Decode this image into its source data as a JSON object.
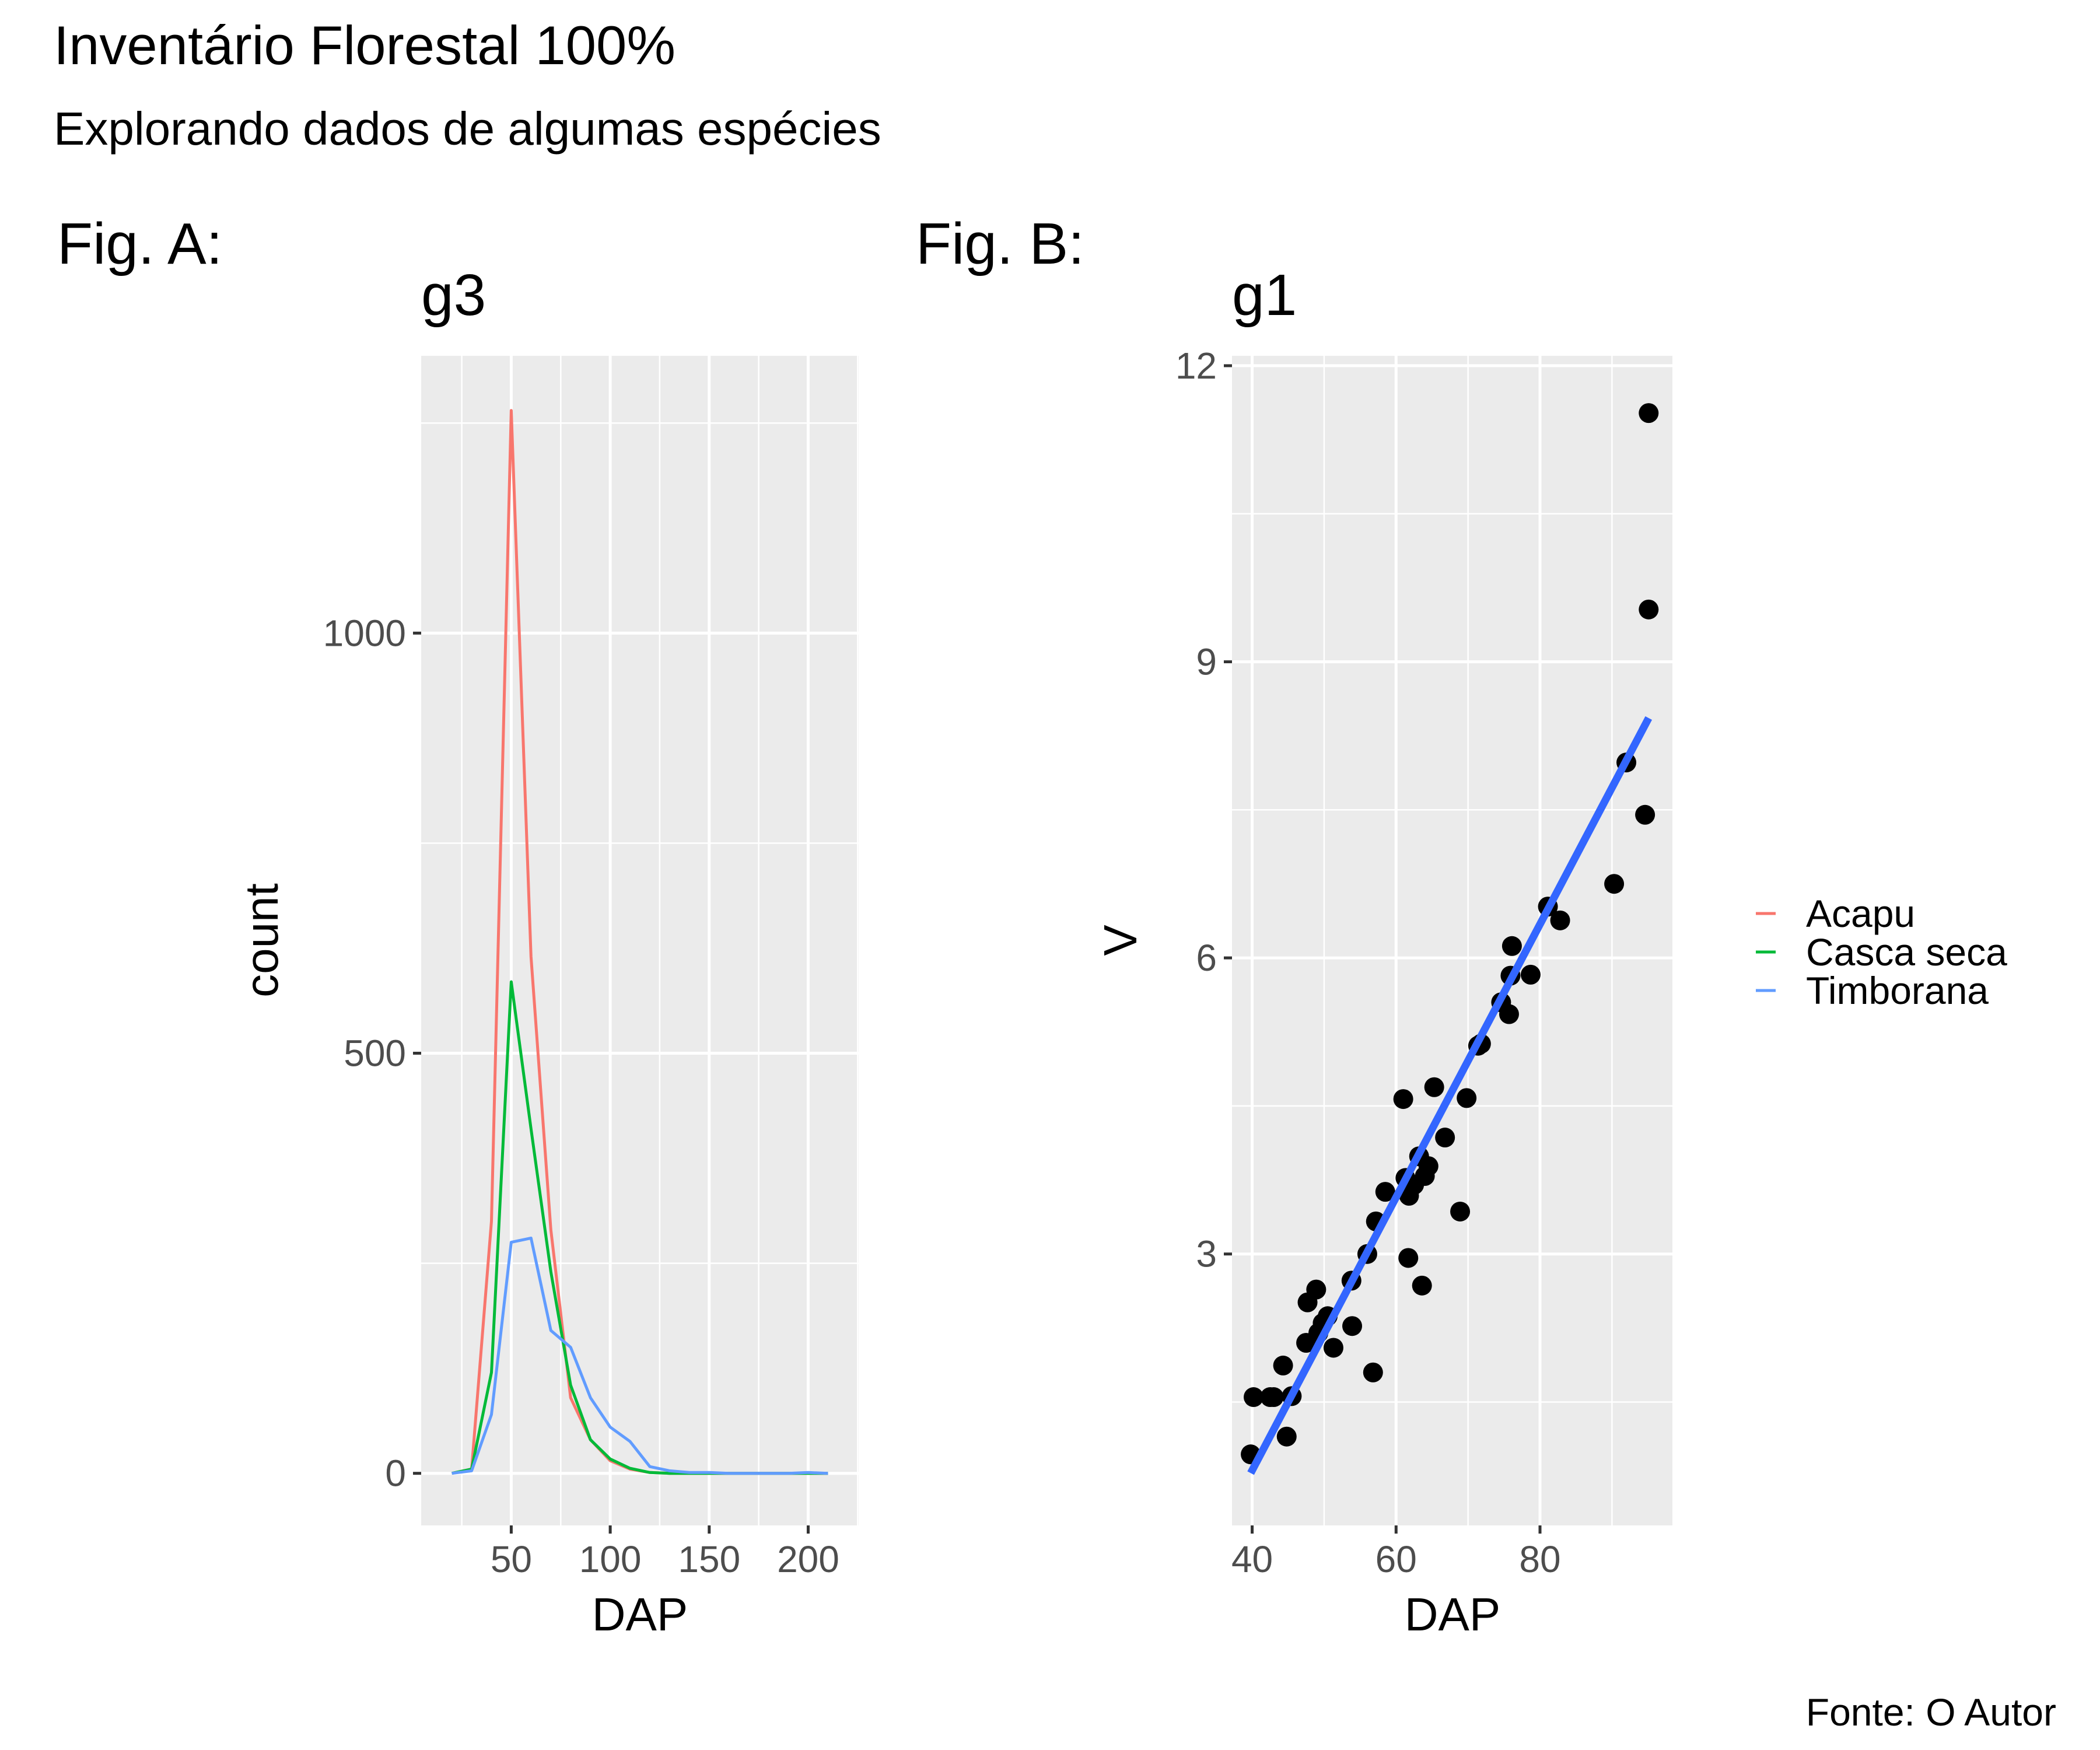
{
  "page": {
    "title": "Inventário Florestal 100%",
    "subtitle": "Explorando dados de algumas espécies",
    "caption": "Fonte: O Autor"
  },
  "colors": {
    "panel_bg": "#EBEBEB",
    "grid": "#FFFFFF",
    "tick_text": "#4D4D4D",
    "Acapu": "#F8766D",
    "Casca seca": "#00BA38",
    "Timborana": "#619CFF",
    "fit_line": "#3366FF",
    "points": "#000000"
  },
  "chart_data": [
    {
      "tag": "Fig. A:",
      "title": "g3",
      "type": "line",
      "xlabel": "DAP",
      "ylabel": "count",
      "xlim": [
        4.5,
        225.5
      ],
      "ylim": [
        -62,
        1330
      ],
      "xticks": [
        50,
        100,
        150,
        200
      ],
      "yticks": [
        0,
        500,
        1000
      ],
      "x": [
        20,
        30,
        40,
        50,
        60,
        70,
        80,
        90,
        100,
        110,
        120,
        130,
        140,
        150,
        160,
        170,
        180,
        190,
        200,
        210
      ],
      "series": [
        {
          "name": "Acapu",
          "values": [
            0,
            5,
            300,
            1265,
            615,
            290,
            90,
            40,
            15,
            5,
            1,
            0,
            0,
            0,
            0,
            0,
            0,
            0,
            0,
            0
          ]
        },
        {
          "name": "Casca seca",
          "values": [
            0,
            5,
            120,
            585,
            410,
            240,
            105,
            40,
            17,
            6,
            1,
            0,
            0,
            0,
            0,
            0,
            0,
            0,
            0,
            0
          ]
        },
        {
          "name": "Timborana",
          "values": [
            0,
            3,
            70,
            275,
            280,
            170,
            150,
            90,
            55,
            38,
            8,
            3,
            1,
            1,
            0,
            0,
            0,
            0,
            1,
            0
          ]
        }
      ],
      "legend": {
        "position": "right",
        "entries": [
          "Acapu",
          "Casca seca",
          "Timborana"
        ]
      },
      "grid": true
    },
    {
      "tag": "Fig. B:",
      "title": "g1",
      "type": "scatter",
      "xlabel": "DAP",
      "ylabel": "V",
      "xlim": [
        37.2,
        98.4
      ],
      "ylim": [
        0.25,
        12.1
      ],
      "xticks": [
        40,
        60,
        80
      ],
      "yticks": [
        3,
        6,
        9,
        12
      ],
      "points": [
        {
          "x": 39.8,
          "y": 0.97
        },
        {
          "x": 40.2,
          "y": 1.55
        },
        {
          "x": 42.5,
          "y": 1.55
        },
        {
          "x": 43.0,
          "y": 1.55
        },
        {
          "x": 44.3,
          "y": 1.87
        },
        {
          "x": 44.8,
          "y": 1.15
        },
        {
          "x": 45.5,
          "y": 1.56
        },
        {
          "x": 47.5,
          "y": 2.1
        },
        {
          "x": 47.7,
          "y": 2.51
        },
        {
          "x": 48.9,
          "y": 2.64
        },
        {
          "x": 49.2,
          "y": 2.2
        },
        {
          "x": 49.8,
          "y": 2.3
        },
        {
          "x": 50.5,
          "y": 2.37
        },
        {
          "x": 51.3,
          "y": 2.05
        },
        {
          "x": 53.8,
          "y": 2.73
        },
        {
          "x": 53.9,
          "y": 2.27
        },
        {
          "x": 56.0,
          "y": 3.0
        },
        {
          "x": 56.8,
          "y": 1.8
        },
        {
          "x": 57.2,
          "y": 3.33
        },
        {
          "x": 58.5,
          "y": 3.63
        },
        {
          "x": 61.0,
          "y": 4.57
        },
        {
          "x": 61.3,
          "y": 3.77
        },
        {
          "x": 61.7,
          "y": 2.96
        },
        {
          "x": 61.8,
          "y": 3.59
        },
        {
          "x": 62.5,
          "y": 3.7
        },
        {
          "x": 63.2,
          "y": 3.99
        },
        {
          "x": 63.6,
          "y": 2.68
        },
        {
          "x": 64.0,
          "y": 3.79
        },
        {
          "x": 64.5,
          "y": 3.89
        },
        {
          "x": 65.3,
          "y": 4.69
        },
        {
          "x": 66.8,
          "y": 4.18
        },
        {
          "x": 68.9,
          "y": 3.43
        },
        {
          "x": 69.8,
          "y": 4.58
        },
        {
          "x": 71.4,
          "y": 5.11
        },
        {
          "x": 71.8,
          "y": 5.13
        },
        {
          "x": 74.6,
          "y": 5.55
        },
        {
          "x": 75.7,
          "y": 5.43
        },
        {
          "x": 75.9,
          "y": 5.82
        },
        {
          "x": 76.1,
          "y": 6.12
        },
        {
          "x": 78.7,
          "y": 5.83
        },
        {
          "x": 81.1,
          "y": 6.52
        },
        {
          "x": 82.8,
          "y": 6.38
        },
        {
          "x": 90.3,
          "y": 6.75
        },
        {
          "x": 92.0,
          "y": 7.98
        },
        {
          "x": 94.6,
          "y": 7.45
        },
        {
          "x": 95.1,
          "y": 9.53
        },
        {
          "x": 95.1,
          "y": 11.52
        }
      ],
      "fit_line": {
        "x": [
          39.8,
          95.1
        ],
        "y": [
          0.78,
          8.43
        ]
      },
      "grid": true
    }
  ]
}
